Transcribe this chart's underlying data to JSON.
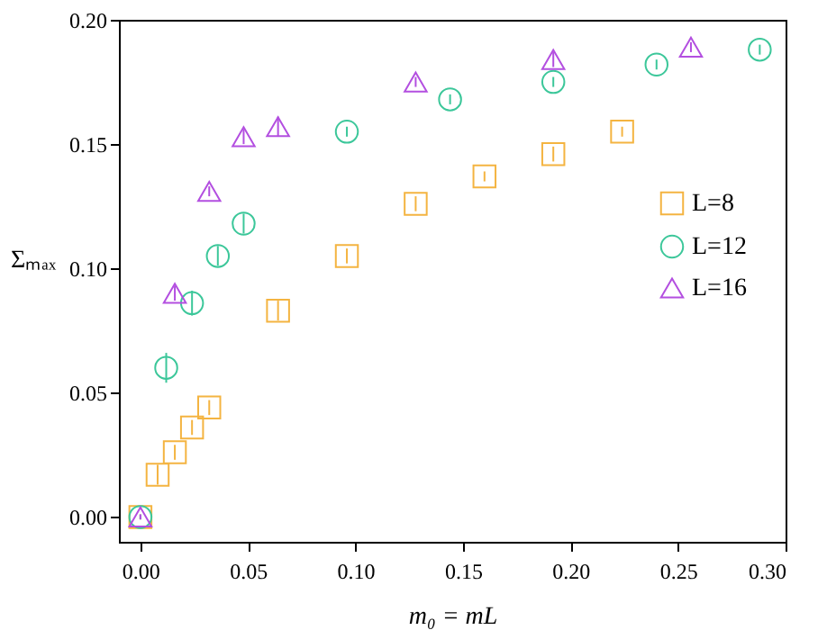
{
  "chart_data": {
    "type": "scatter",
    "xlabel": "m₀ = mL",
    "ylabel": "Σₘₐₓ",
    "xlim": [
      -0.01,
      0.3
    ],
    "ylim": [
      -0.01,
      0.2
    ],
    "xticks": [
      {
        "value": 0,
        "label": "0.00"
      },
      0.05,
      {
        "value": 0.1,
        "label": "0.10"
      },
      0.15,
      {
        "value": 0.2,
        "label": "0.20"
      },
      0.25,
      {
        "value": 0.3,
        "label": "0.30"
      }
    ],
    "yticks": [
      {
        "value": 0,
        "label": "0.00"
      },
      0.05,
      {
        "value": 0.1,
        "label": "0.10"
      },
      0.15,
      {
        "value": 0.2,
        "label": "0.20"
      }
    ],
    "legend": "right",
    "grid": false,
    "series": [
      {
        "name": "L=8",
        "color": "#f4b441",
        "marker": "square",
        "x": [
          0,
          0.008,
          0.016,
          0.024,
          0.032,
          0.064,
          0.096,
          0.128,
          0.16,
          0.192,
          0.224
        ],
        "values": [
          0,
          0.017,
          0.026,
          0.036,
          0.044,
          0.083,
          0.105,
          0.126,
          0.137,
          0.146,
          0.155
        ],
        "errors": [
          0.001,
          0.004,
          0.003,
          0.003,
          0.003,
          0.004,
          0.003,
          0.003,
          0.002,
          0.003,
          0.002
        ]
      },
      {
        "name": "L=12",
        "color": "#3cc79a",
        "marker": "circle",
        "x": [
          0,
          0.012,
          0.024,
          0.036,
          0.048,
          0.096,
          0.144,
          0.192,
          0.24,
          0.288
        ],
        "values": [
          0,
          0.06,
          0.086,
          0.105,
          0.118,
          0.155,
          0.168,
          0.175,
          0.182,
          0.188
        ],
        "errors": [
          0.001,
          0.006,
          0.005,
          0.004,
          0.004,
          0.002,
          0.002,
          0.002,
          0.002,
          0.002
        ]
      },
      {
        "name": "L=16",
        "color": "#b34fe0",
        "marker": "triangle",
        "x": [
          0,
          0.016,
          0.032,
          0.048,
          0.064,
          0.128,
          0.192,
          0.256
        ],
        "values": [
          0,
          0.09,
          0.131,
          0.153,
          0.157,
          0.175,
          0.184,
          0.189
        ],
        "errors": [
          0.001,
          0.003,
          0.002,
          0.003,
          0.004,
          0.002,
          0.003,
          0.002
        ]
      }
    ]
  }
}
